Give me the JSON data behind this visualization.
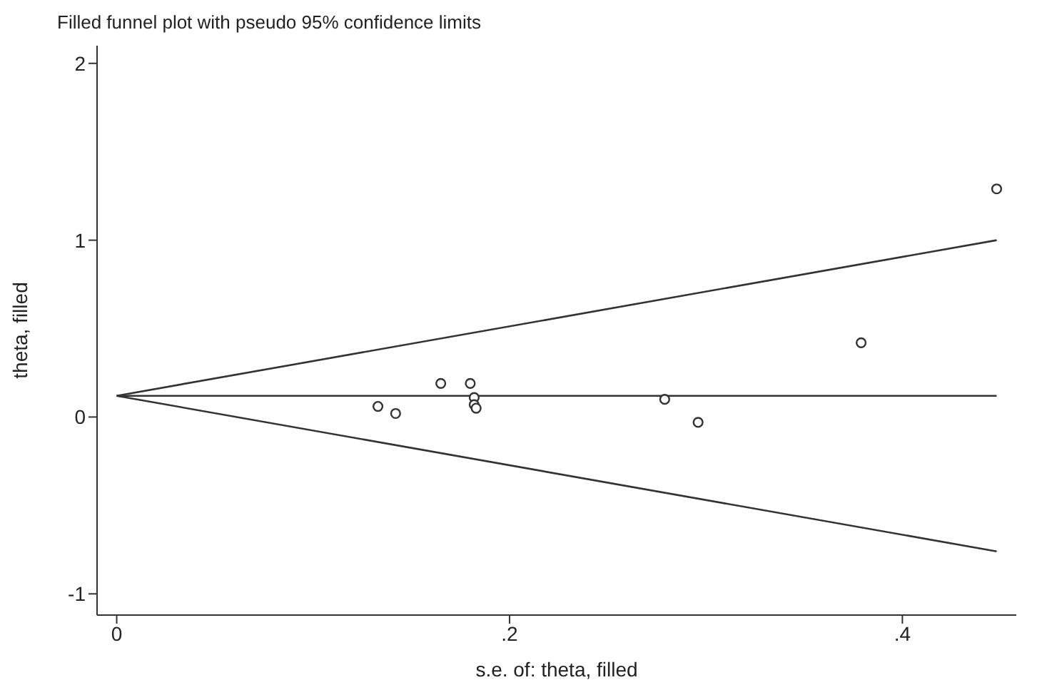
{
  "chart_data": {
    "type": "scatter",
    "title": "Filled funnel plot with pseudo 95% confidence limits",
    "xlabel": "s.e. of: theta, filled",
    "ylabel": "theta, filled",
    "xlim": [
      -0.01,
      0.458
    ],
    "ylim": [
      -1.12,
      2.1
    ],
    "xticks": [
      0,
      {
        "value": 0.2,
        "label": ".2"
      },
      {
        "value": 0.4,
        "label": ".4"
      }
    ],
    "yticks": [
      -1,
      0,
      1,
      2
    ],
    "series": [
      {
        "color": "#333333",
        "marker": "circle",
        "x": [
          0.133,
          0.142,
          0.165,
          0.18,
          0.182,
          0.182,
          0.183,
          0.279,
          0.296,
          0.379,
          0.448
        ],
        "values": [
          0.06,
          0.02,
          0.19,
          0.19,
          0.11,
          0.07,
          0.05,
          0.1,
          -0.03,
          0.42,
          1.29
        ]
      },
      {
        "type": "line",
        "color": "#333333",
        "x": [
          0,
          0.448
        ],
        "values": [
          0.12,
          0.12
        ]
      },
      {
        "type": "line",
        "color": "#333333",
        "x": [
          0,
          0.448
        ],
        "values": [
          0.12,
          1
        ]
      },
      {
        "type": "line",
        "color": "#333333",
        "x": [
          0,
          0.448
        ],
        "values": [
          0.12,
          -0.76
        ]
      }
    ]
  }
}
